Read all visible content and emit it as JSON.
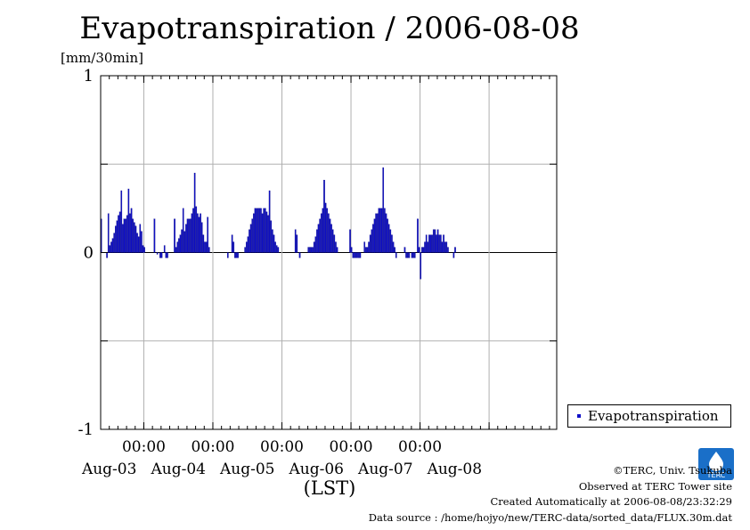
{
  "title": "Evapotranspiration / 2006-08-08",
  "unit": "[mm/30min]",
  "xlabel": "(LST)",
  "legend_label": "Evapotranspiration",
  "credits": [
    "©TERC, Univ. Tsukuba",
    "Observed at TERC Tower site",
    "Created Automatically at 2006-08-08/23:32:29",
    "Data source : /home/hojyo/new/TERC-data/sorted_data/FLUX.30m.dat"
  ],
  "logo_text": "TERC",
  "colors": {
    "bar": "#1010c8",
    "grid": "#b0b0b0"
  },
  "chart_data": {
    "type": "bar",
    "title": "Evapotranspiration / 2006-08-08",
    "ylabel": "[mm/30min]",
    "xlabel": "(LST)",
    "ylim": [
      -1,
      1
    ],
    "yticks": [
      1,
      0,
      -1
    ],
    "grid": true,
    "legend_position": "bottom-right",
    "x_time_labels": [
      "00:00",
      "00:00",
      "00:00",
      "00:00",
      "00:00"
    ],
    "x_day_labels": [
      "Aug-03",
      "Aug-04",
      "Aug-05",
      "Aug-06",
      "Aug-07",
      "Aug-08"
    ],
    "xlim": [
      "2006-08-02 09:00",
      "2006-08-08 23:30"
    ],
    "x_interval": "30min",
    "series": [
      {
        "name": "Evapotranspiration",
        "start": "2006-08-02 09:00",
        "values": [
          0.19,
          0,
          0,
          0,
          -0.03,
          0.22,
          0.04,
          0.06,
          0.08,
          0.11,
          0.15,
          0.18,
          0.21,
          0.23,
          0.35,
          0.16,
          0.19,
          0.19,
          0.21,
          0.36,
          0.22,
          0.25,
          0.19,
          0.17,
          0.15,
          0.11,
          0.09,
          0.16,
          0.12,
          0.04,
          0.03,
          0,
          0,
          0,
          0,
          0,
          0,
          0.19,
          0,
          -0.01,
          0,
          -0.03,
          -0.03,
          0,
          0.04,
          -0.03,
          -0.03,
          0,
          0,
          0,
          0,
          0.19,
          0.03,
          0.06,
          0.08,
          0.1,
          0.13,
          0.25,
          0.12,
          0.16,
          0.19,
          0.19,
          0.19,
          0.22,
          0.25,
          0.45,
          0.26,
          0.22,
          0.2,
          0.22,
          0.17,
          0.1,
          0.06,
          0.06,
          0.2,
          0.03,
          0,
          0,
          0,
          0,
          0,
          0,
          0,
          0,
          0,
          0,
          0,
          0,
          -0.03,
          0,
          0,
          0.1,
          0.06,
          -0.03,
          -0.03,
          -0.03,
          0,
          0,
          0,
          0,
          0.03,
          0.06,
          0.09,
          0.13,
          0.16,
          0.19,
          0.22,
          0.25,
          0.25,
          0.25,
          0.25,
          0.25,
          0.22,
          0.25,
          0.25,
          0.23,
          0.21,
          0.35,
          0.18,
          0.13,
          0.1,
          0.06,
          0.04,
          0.03,
          0,
          0,
          0,
          0,
          0,
          0,
          0,
          0,
          0,
          0,
          0,
          0.13,
          0.1,
          0,
          -0.03,
          0,
          0,
          0,
          0,
          0,
          0.03,
          0.03,
          0.03,
          0.03,
          0.06,
          0.09,
          0.13,
          0.16,
          0.19,
          0.22,
          0.25,
          0.41,
          0.28,
          0.25,
          0.22,
          0.19,
          0.16,
          0.13,
          0.1,
          0.06,
          0.03,
          0,
          0,
          0,
          0,
          0,
          0,
          0,
          0,
          0.13,
          0.03,
          -0.03,
          -0.03,
          -0.03,
          -0.03,
          -0.03,
          -0.03,
          0,
          0,
          0.06,
          0.03,
          0.03,
          0.06,
          0.1,
          0.13,
          0.16,
          0.19,
          0.22,
          0.22,
          0.25,
          0.25,
          0.25,
          0.48,
          0.25,
          0.22,
          0.19,
          0.16,
          0.13,
          0.1,
          0.06,
          0.03,
          -0.03,
          0,
          0,
          0,
          0,
          0,
          0.03,
          -0.03,
          -0.03,
          -0.03,
          0,
          -0.03,
          -0.03,
          -0.03,
          0,
          0.19,
          0.03,
          -0.15,
          0.03,
          0.03,
          0.06,
          0.1,
          0.06,
          0.1,
          0.1,
          0.1,
          0.13,
          0.13,
          0.1,
          0.13,
          0.1,
          0.1,
          0.06,
          0.1,
          0.06,
          0.06,
          0.03,
          0,
          0,
          0,
          -0.03,
          0.03
        ]
      }
    ]
  }
}
